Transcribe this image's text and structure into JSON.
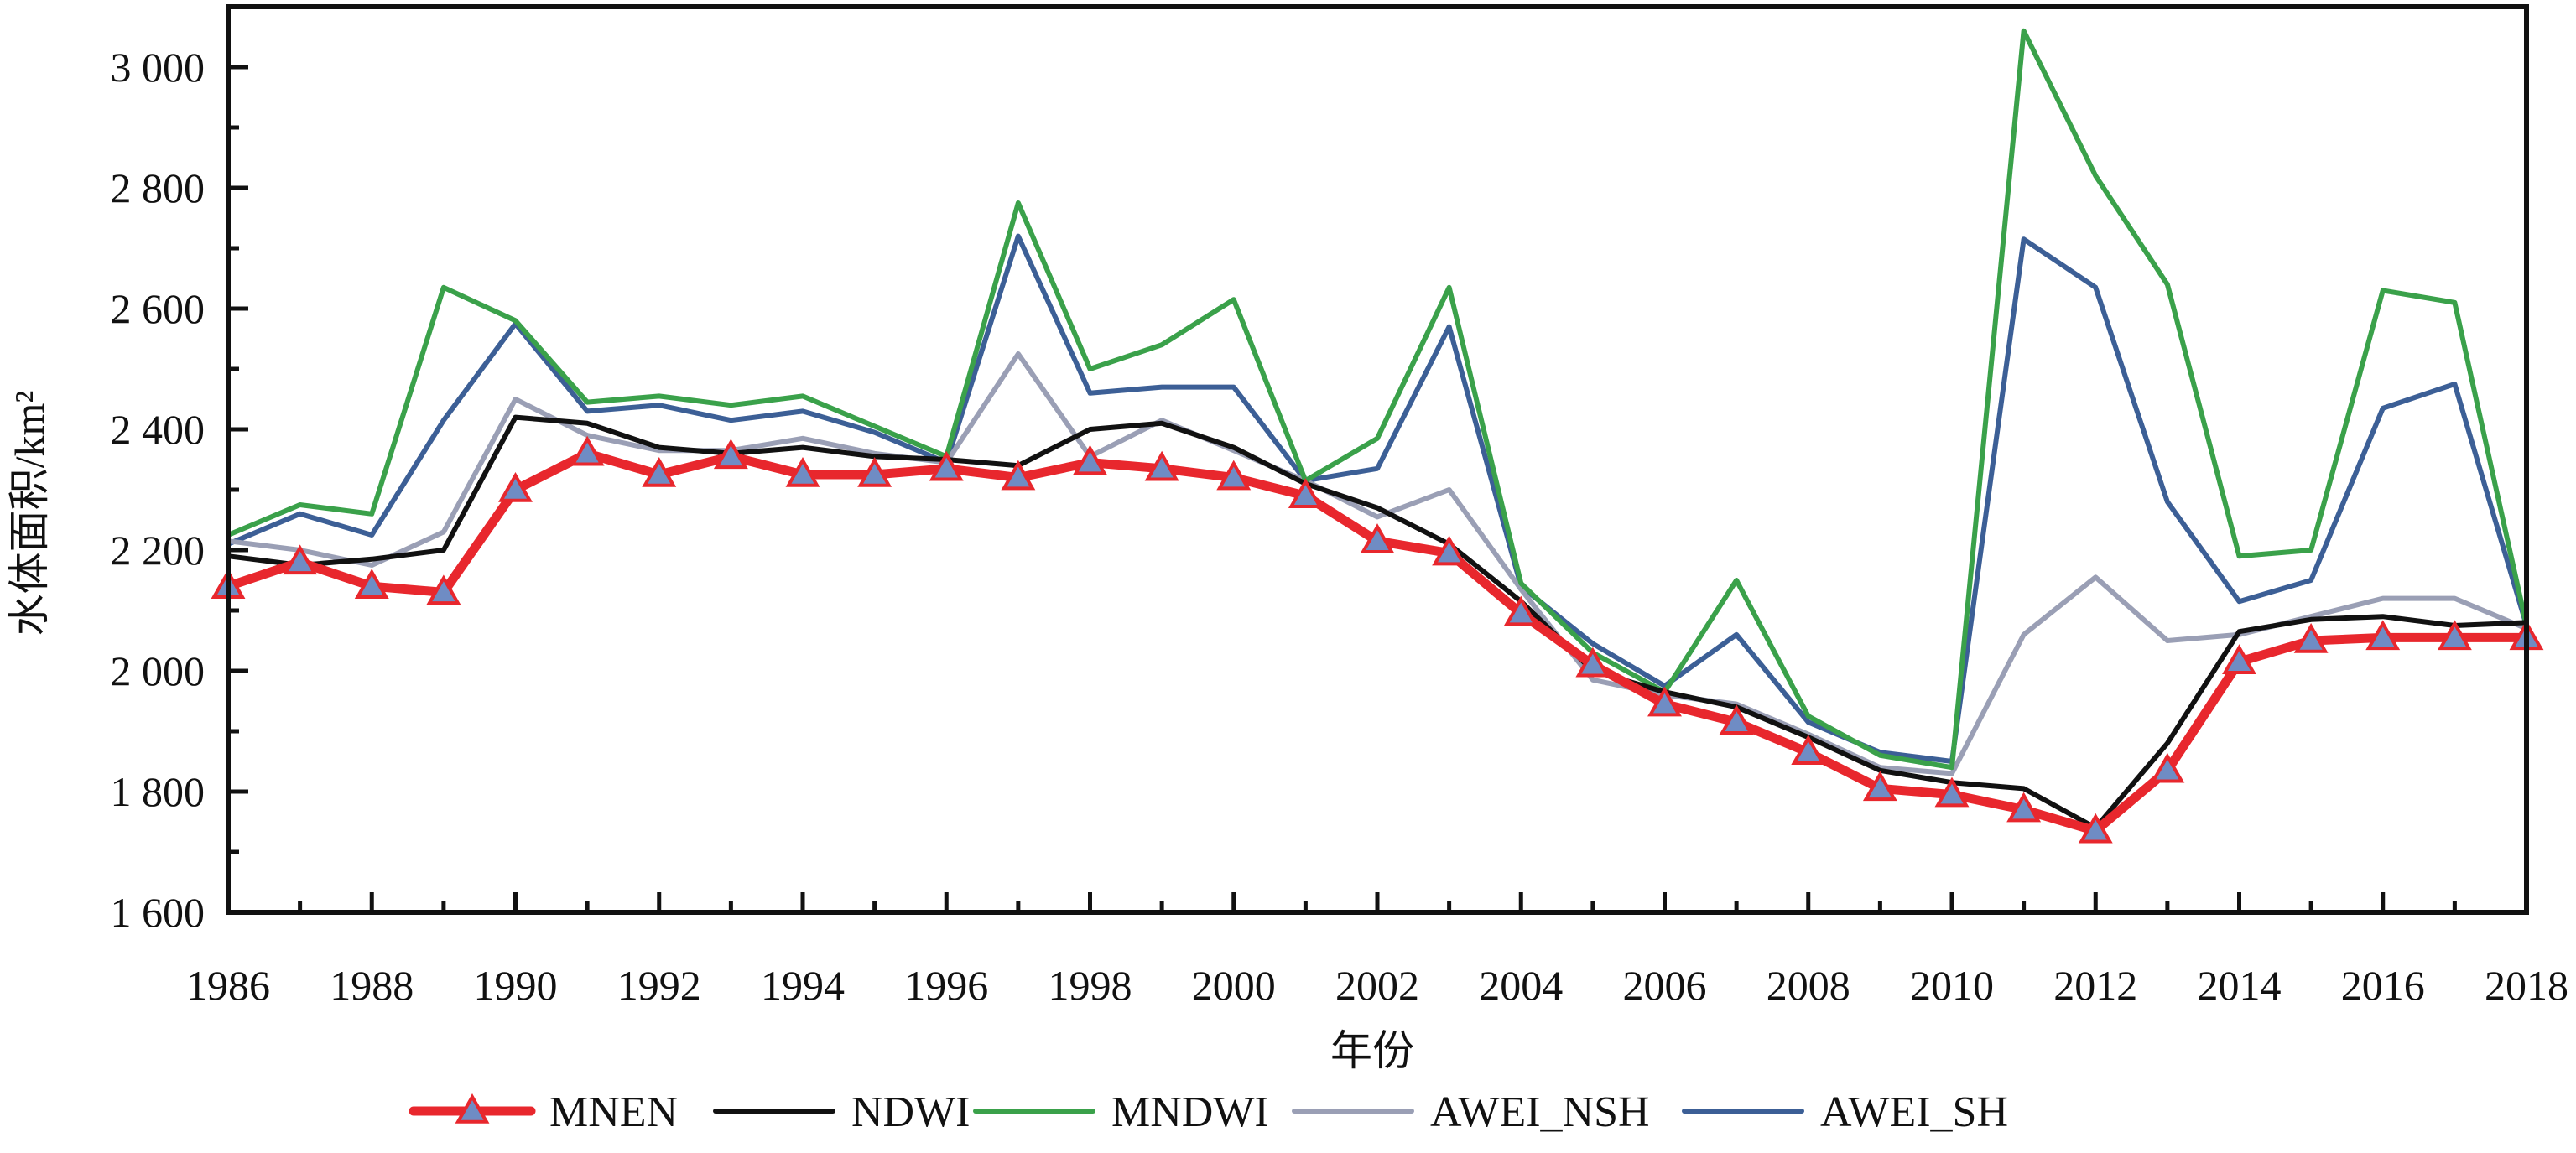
{
  "chart_data": {
    "type": "line",
    "xlabel": "年份",
    "ylabel": "水体面积/km²",
    "x": [
      1986,
      1987,
      1988,
      1989,
      1990,
      1991,
      1992,
      1993,
      1994,
      1995,
      1996,
      1997,
      1998,
      1999,
      2000,
      2001,
      2002,
      2003,
      2004,
      2005,
      2006,
      2007,
      2008,
      2009,
      2010,
      2011,
      2012,
      2013,
      2014,
      2015,
      2016,
      2017,
      2018
    ],
    "xlim": [
      1986,
      2018
    ],
    "ylim": [
      1600,
      3100
    ],
    "x_ticks": [
      1986,
      1988,
      1990,
      1992,
      1994,
      1996,
      1998,
      2000,
      2002,
      2004,
      2006,
      2008,
      2010,
      2012,
      2014,
      2016,
      2018
    ],
    "x_tick_labels": [
      "1986",
      "1988",
      "1990",
      "1992",
      "1994",
      "1996",
      "1998",
      "2000",
      "2002",
      "2004",
      "2006",
      "2008",
      "2010",
      "2012",
      "2014",
      "2016",
      "2018"
    ],
    "y_ticks": [
      1600,
      1800,
      2000,
      2200,
      2400,
      2600,
      2800,
      3000
    ],
    "y_tick_labels": [
      "1 600",
      "1 800",
      "2 000",
      "2 200",
      "2 400",
      "2 600",
      "2 800",
      "3 000"
    ],
    "grid": false,
    "legend_position": "bottom",
    "series": [
      {
        "name": "MNEN",
        "color": "#e8272d",
        "marker": "triangle",
        "values": [
          2140,
          2180,
          2140,
          2130,
          2300,
          2360,
          2325,
          2355,
          2325,
          2325,
          2335,
          2320,
          2345,
          2335,
          2320,
          2290,
          2215,
          2195,
          2095,
          2010,
          1945,
          1915,
          1865,
          1805,
          1795,
          1770,
          1735,
          1835,
          2015,
          2050,
          2055,
          2055,
          2055
        ]
      },
      {
        "name": "NDWI",
        "color": "#111111",
        "marker": "none",
        "values": [
          2190,
          2175,
          2185,
          2200,
          2420,
          2410,
          2370,
          2360,
          2370,
          2355,
          2350,
          2340,
          2400,
          2410,
          2370,
          2310,
          2270,
          2210,
          2115,
          2000,
          1965,
          1940,
          1890,
          1835,
          1815,
          1805,
          1740,
          1880,
          2065,
          2085,
          2090,
          2075,
          2080
        ]
      },
      {
        "name": "MNDWI",
        "color": "#3aa14a",
        "marker": "none",
        "values": [
          2225,
          2275,
          2260,
          2635,
          2580,
          2445,
          2455,
          2440,
          2455,
          2405,
          2355,
          2775,
          2500,
          2540,
          2615,
          2315,
          2385,
          2635,
          2145,
          2030,
          1965,
          2150,
          1925,
          1860,
          1840,
          3060,
          2820,
          2640,
          2190,
          2200,
          2630,
          2610,
          2075
        ]
      },
      {
        "name": "AWEI_NSH",
        "color": "#9a9fb5",
        "marker": "none",
        "values": [
          2215,
          2200,
          2175,
          2230,
          2450,
          2390,
          2365,
          2365,
          2385,
          2360,
          2345,
          2525,
          2355,
          2415,
          2365,
          2315,
          2255,
          2300,
          2135,
          1985,
          1960,
          1945,
          1895,
          1840,
          1830,
          2060,
          2155,
          2050,
          2060,
          2090,
          2120,
          2120,
          2070
        ]
      },
      {
        "name": "AWEI_SH",
        "color": "#3c5f96",
        "marker": "none",
        "values": [
          2210,
          2260,
          2225,
          2415,
          2575,
          2430,
          2440,
          2415,
          2430,
          2395,
          2345,
          2720,
          2460,
          2470,
          2470,
          2315,
          2335,
          2570,
          2140,
          2045,
          1975,
          2060,
          1915,
          1865,
          1850,
          2715,
          2635,
          2280,
          2115,
          2150,
          2435,
          2475,
          2075
        ]
      }
    ]
  }
}
